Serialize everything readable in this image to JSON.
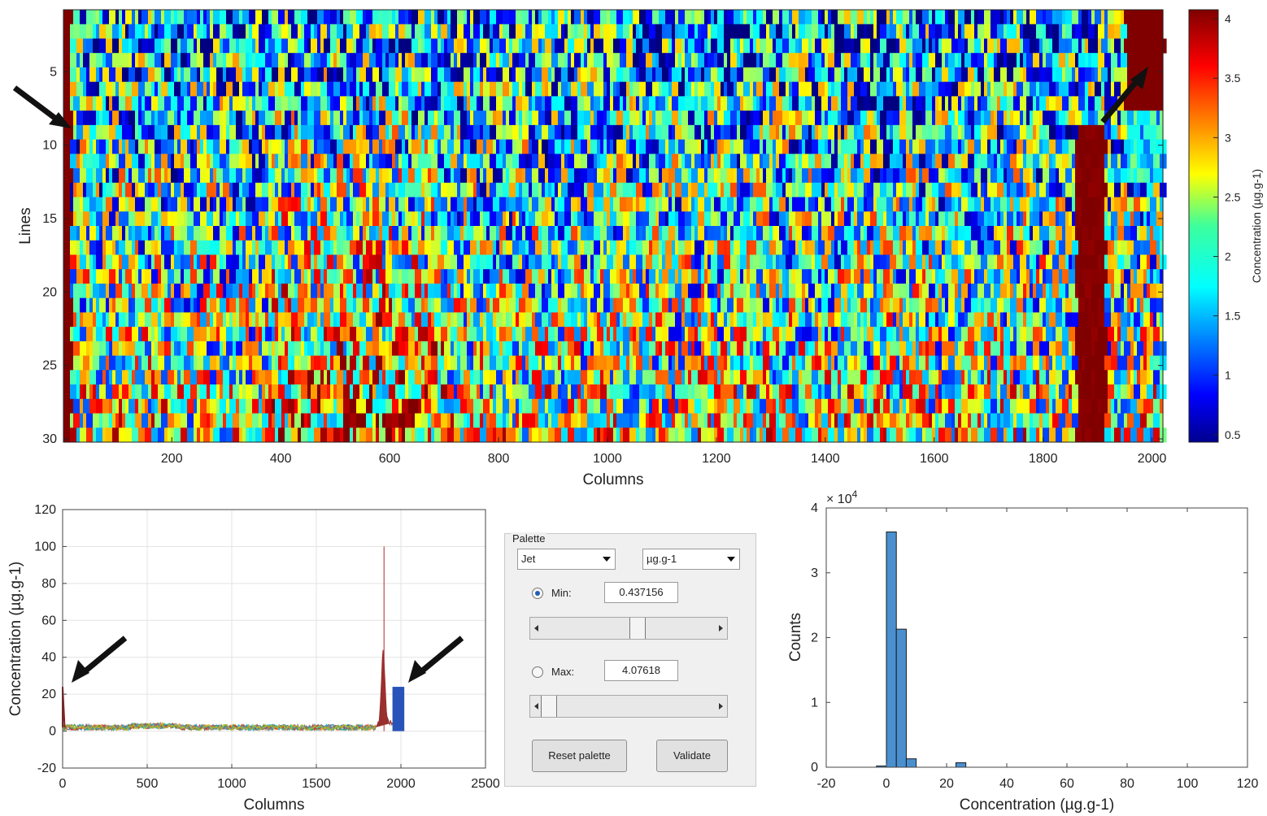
{
  "heatmap": {
    "ylabel": "Lines",
    "xlabel": "Columns",
    "xticks": [
      "200",
      "400",
      "600",
      "800",
      "1000",
      "1200",
      "1400",
      "1600",
      "1800",
      "2000"
    ],
    "yticks": [
      "5",
      "10",
      "15",
      "20",
      "25",
      "30"
    ]
  },
  "colorbar": {
    "label": "Concentration (µg.g-1)",
    "ticks": [
      "4",
      "3.5",
      "3",
      "2.5",
      "2",
      "1.5",
      "1",
      "0.5"
    ]
  },
  "line_plot": {
    "ylabel": "Concentration (µg.g-1)",
    "xlabel": "Columns",
    "xticks": [
      "0",
      "500",
      "1000",
      "1500",
      "2000",
      "2500"
    ],
    "yticks": [
      "120",
      "100",
      "80",
      "60",
      "40",
      "20",
      "0",
      "-20"
    ]
  },
  "palette": {
    "title": "Palette",
    "colormap": "Jet",
    "unit": "µg.g-1",
    "min_label": "Min:",
    "min_value": "0.437156",
    "min_selected": true,
    "max_label": "Max:",
    "max_value": "4.07618",
    "max_selected": false,
    "min_slider_position": 0.55,
    "max_slider_position": 0.06,
    "reset_label": "Reset palette",
    "validate_label": "Validate"
  },
  "histogram": {
    "ylabel": "Counts",
    "xlabel": "Concentration (µg.g-1)",
    "exponent": "× 10",
    "exponent_power": "4",
    "xticks": [
      "-20",
      "0",
      "20",
      "40",
      "60",
      "80",
      "100",
      "120"
    ],
    "yticks": [
      "4",
      "3",
      "2",
      "1",
      "0"
    ]
  },
  "chart_data": [
    {
      "type": "heatmap",
      "xlabel": "Columns",
      "ylabel": "Lines",
      "xlim": [
        1,
        2020
      ],
      "ylim": [
        1,
        30
      ],
      "colorbar_range": [
        0.437156,
        4.07618
      ],
      "colormap": "Jet"
    },
    {
      "type": "line",
      "xlabel": "Columns",
      "ylabel": "Concentration (µg.g-1)",
      "xlim": [
        0,
        2500
      ],
      "ylim": [
        -20,
        120
      ],
      "grid": true,
      "baseline": 2,
      "peaks": [
        {
          "x": 0,
          "y": 24
        },
        {
          "x": 1900,
          "y": 100
        },
        {
          "x": 1880,
          "y": 50
        }
      ],
      "plateau": {
        "x_start": 1950,
        "x_end": 2020,
        "y": 24
      }
    },
    {
      "type": "bar",
      "xlabel": "Concentration (µg.g-1)",
      "ylabel": "Counts",
      "xlim": [
        -20,
        120
      ],
      "ylim": [
        0,
        40000
      ],
      "bin_width": 3.3,
      "bin_centers": [
        -1.65,
        1.65,
        4.95,
        8.25,
        24.75
      ],
      "values": [
        200,
        36300,
        21300,
        1300,
        700
      ]
    }
  ]
}
